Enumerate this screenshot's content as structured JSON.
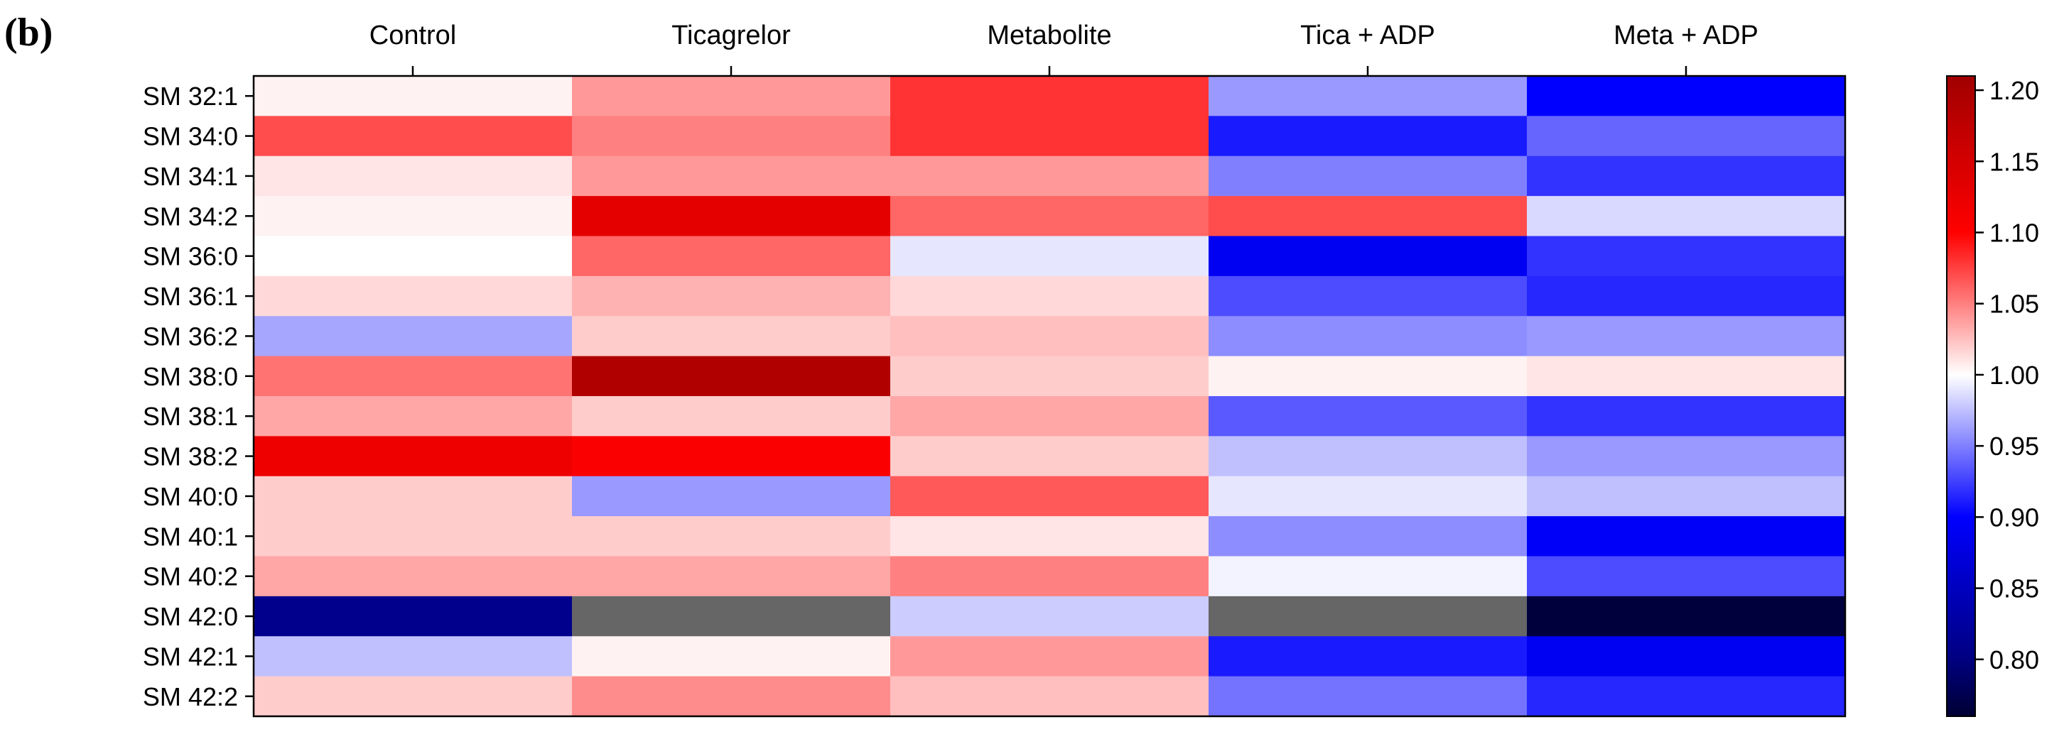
{
  "panel_label": "(b)",
  "chart_data": {
    "type": "heatmap",
    "title": "",
    "xlabel": "",
    "ylabel": "",
    "columns": [
      "Control",
      "Ticagrelor",
      "Metabolite",
      "Tica + ADP",
      "Meta + ADP"
    ],
    "rows": [
      "SM 32:1",
      "SM 34:0",
      "SM 34:1",
      "SM 34:2",
      "SM 36:0",
      "SM 36:1",
      "SM 36:2",
      "SM 38:0",
      "SM 38:1",
      "SM 38:2",
      "SM 40:0",
      "SM 40:1",
      "SM 40:2",
      "SM 42:0",
      "SM 42:1",
      "SM 42:2"
    ],
    "values": [
      [
        1.005,
        1.04,
        1.08,
        0.96,
        0.9
      ],
      [
        1.07,
        1.05,
        1.08,
        0.91,
        0.94
      ],
      [
        1.01,
        1.04,
        1.04,
        0.95,
        0.92
      ],
      [
        1.005,
        1.13,
        1.06,
        1.07,
        0.985
      ],
      [
        1.0,
        1.06,
        0.99,
        0.89,
        0.92
      ],
      [
        1.015,
        1.03,
        1.015,
        0.93,
        0.915
      ],
      [
        0.965,
        1.02,
        1.025,
        0.955,
        0.96
      ],
      [
        1.055,
        1.19,
        1.02,
        1.005,
        1.01
      ],
      [
        1.035,
        1.02,
        1.035,
        0.935,
        0.92
      ],
      [
        1.12,
        1.105,
        1.02,
        0.975,
        0.96
      ],
      [
        1.02,
        0.96,
        1.065,
        0.99,
        0.975
      ],
      [
        1.02,
        1.02,
        1.01,
        0.955,
        0.895
      ],
      [
        1.035,
        1.035,
        1.05,
        0.995,
        0.93
      ],
      [
        0.81,
        null,
        0.98,
        null,
        0.765
      ],
      [
        0.975,
        1.005,
        1.04,
        0.91,
        0.89
      ],
      [
        1.02,
        1.045,
        1.025,
        0.945,
        0.915
      ]
    ],
    "missing_color": "#666666",
    "colorbar": {
      "min": 0.76,
      "max": 1.21,
      "ticks": [
        0.8,
        0.85,
        0.9,
        0.95,
        1.0,
        1.05,
        1.1,
        1.15,
        1.2
      ],
      "tick_labels": [
        "0.80",
        "0.85",
        "0.90",
        "0.95",
        "1.00",
        "1.05",
        "1.10",
        "1.15",
        "1.20"
      ],
      "colormap": [
        [
          0.0,
          "#000033"
        ],
        [
          0.089,
          "#000080"
        ],
        [
          0.311,
          "#0000ff"
        ],
        [
          0.533,
          "#ffffff"
        ],
        [
          0.756,
          "#ff0000"
        ],
        [
          1.0,
          "#a00000"
        ]
      ]
    }
  }
}
